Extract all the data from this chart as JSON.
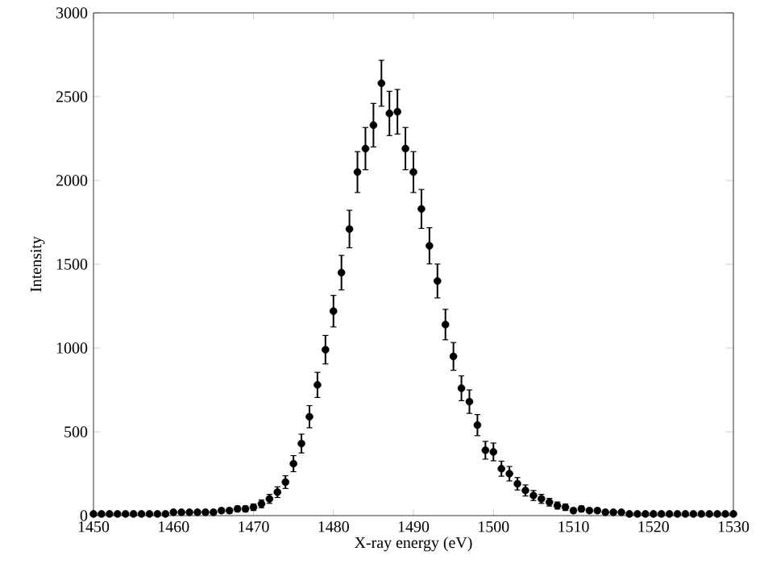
{
  "chart_data": {
    "type": "scatter",
    "xlabel": "X-ray energy (eV)",
    "ylabel": "Intensity",
    "grid": false,
    "xlim": [
      1450,
      1530
    ],
    "xticks": [
      1450,
      1460,
      1470,
      1480,
      1490,
      1500,
      1510,
      1520,
      1530
    ],
    "ylim": [
      0,
      3000
    ],
    "yticks": [
      0,
      500,
      1000,
      1500,
      2000,
      2500,
      3000
    ],
    "x": [
      1450,
      1451,
      1452,
      1453,
      1454,
      1455,
      1456,
      1457,
      1458,
      1459,
      1460,
      1461,
      1462,
      1463,
      1464,
      1465,
      1466,
      1467,
      1468,
      1469,
      1470,
      1471,
      1472,
      1473,
      1474,
      1475,
      1476,
      1477,
      1478,
      1479,
      1480,
      1481,
      1482,
      1483,
      1484,
      1485,
      1486,
      1487,
      1488,
      1489,
      1490,
      1491,
      1492,
      1493,
      1494,
      1495,
      1496,
      1497,
      1498,
      1499,
      1500,
      1501,
      1502,
      1503,
      1504,
      1505,
      1506,
      1507,
      1508,
      1509,
      1510,
      1511,
      1512,
      1513,
      1514,
      1515,
      1516,
      1517,
      1518,
      1519,
      1520,
      1521,
      1522,
      1523,
      1524,
      1525,
      1526,
      1527,
      1528,
      1529,
      1530
    ],
    "series": [
      {
        "color": "#000000",
        "values": [
          10,
          10,
          10,
          10,
          10,
          10,
          10,
          10,
          10,
          10,
          20,
          20,
          20,
          20,
          20,
          20,
          30,
          30,
          40,
          40,
          50,
          70,
          100,
          140,
          200,
          310,
          430,
          590,
          780,
          990,
          1220,
          1450,
          1710,
          2050,
          2190,
          2330,
          2580,
          2400,
          2410,
          2190,
          2050,
          1830,
          1610,
          1400,
          1140,
          950,
          760,
          680,
          540,
          390,
          380,
          280,
          250,
          190,
          150,
          120,
          100,
          80,
          60,
          50,
          30,
          40,
          30,
          30,
          20,
          20,
          20,
          10,
          10,
          10,
          10,
          10,
          10,
          10,
          10,
          10,
          10,
          10,
          10,
          10,
          10
        ],
        "errors": [
          10,
          10,
          10,
          10,
          10,
          10,
          10,
          10,
          10,
          10,
          11,
          11,
          11,
          12,
          12,
          13,
          13,
          15,
          16,
          17,
          19,
          23,
          27,
          32,
          38,
          48,
          56,
          66,
          75,
          85,
          94,
          103,
          112,
          122,
          126,
          130,
          137,
          132,
          133,
          126,
          122,
          116,
          108,
          101,
          91,
          83,
          74,
          70,
          63,
          53,
          53,
          45,
          43,
          37,
          33,
          30,
          27,
          23,
          21,
          19,
          15,
          17,
          13,
          13,
          12,
          10,
          10,
          9,
          9,
          9,
          9,
          9,
          9,
          9,
          9,
          9,
          9,
          9,
          9,
          9,
          9
        ]
      }
    ]
  }
}
